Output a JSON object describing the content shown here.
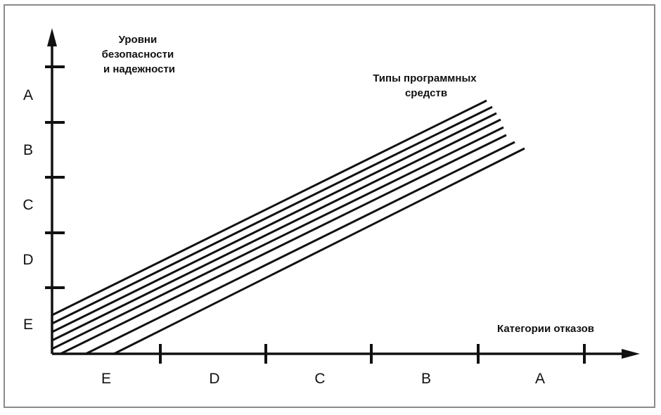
{
  "y_axis": {
    "title_lines": [
      "Уровни",
      "безопасности",
      "и надежности"
    ],
    "levels": [
      "A",
      "B",
      "C",
      "D",
      "E"
    ]
  },
  "x_axis": {
    "title": "Категории отказов",
    "categories": [
      "E",
      "D",
      "C",
      "B",
      "A"
    ]
  },
  "lines_label_lines": [
    "Типы программных",
    "средств"
  ],
  "lines": {
    "count": 8
  }
}
